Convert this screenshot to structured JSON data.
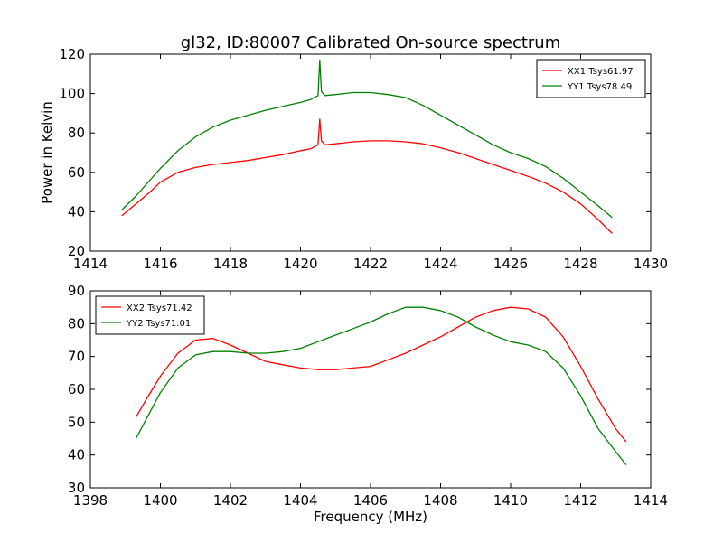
{
  "chart_data": [
    {
      "type": "line",
      "title": "gl32, ID:80007 Calibrated On-source spectrum",
      "xlabel": "",
      "ylabel": "Power in Kelvin",
      "xlim": [
        1414,
        1430
      ],
      "ylim": [
        20,
        120
      ],
      "xticks": [
        "1414",
        "1416",
        "1418",
        "1420",
        "1422",
        "1424",
        "1426",
        "1428",
        "1430"
      ],
      "yticks": [
        "20",
        "40",
        "60",
        "80",
        "100",
        "120"
      ],
      "grid": false,
      "legend_position": "top-right",
      "series": [
        {
          "name": "XX1 Tsys61.97",
          "color": "#ff0000",
          "x": [
            1414.9,
            1415.3,
            1415.7,
            1416.0,
            1416.5,
            1417.0,
            1417.5,
            1418.0,
            1418.5,
            1419.0,
            1419.5,
            1420.0,
            1420.3,
            1420.5,
            1420.55,
            1420.6,
            1420.7,
            1421.0,
            1421.5,
            1422.0,
            1422.5,
            1423.0,
            1423.5,
            1424.0,
            1424.5,
            1425.0,
            1425.5,
            1426.0,
            1426.5,
            1427.0,
            1427.5,
            1428.0,
            1428.5,
            1428.9
          ],
          "values": [
            38,
            44,
            50,
            55,
            60,
            62.5,
            64,
            65,
            66,
            67.5,
            69,
            71,
            72,
            74,
            87,
            76,
            74,
            74.5,
            75.5,
            76,
            76,
            75.5,
            74.5,
            72.5,
            70,
            67,
            64,
            61,
            58,
            54.5,
            50,
            44,
            36,
            29
          ]
        },
        {
          "name": "YY1 Tsys78.49",
          "color": "#008000",
          "x": [
            1414.9,
            1415.3,
            1415.7,
            1416.0,
            1416.5,
            1417.0,
            1417.5,
            1418.0,
            1418.5,
            1419.0,
            1419.5,
            1420.0,
            1420.3,
            1420.5,
            1420.55,
            1420.6,
            1420.7,
            1421.0,
            1421.5,
            1422.0,
            1422.5,
            1423.0,
            1423.5,
            1424.0,
            1424.5,
            1425.0,
            1425.5,
            1426.0,
            1426.5,
            1427.0,
            1427.5,
            1428.0,
            1428.5,
            1428.9
          ],
          "values": [
            41,
            48,
            56,
            62,
            71,
            78,
            83,
            86.5,
            89,
            91.5,
            93.5,
            95.5,
            97,
            99,
            117,
            101,
            99,
            99.5,
            100.5,
            100.5,
            99.5,
            98,
            94,
            89,
            84,
            79,
            74,
            70,
            67,
            63,
            57,
            50,
            43,
            37
          ]
        }
      ]
    },
    {
      "type": "line",
      "title": "",
      "xlabel": "Frequency (MHz)",
      "ylabel": "",
      "xlim": [
        1398,
        1414
      ],
      "ylim": [
        30,
        90
      ],
      "xticks": [
        "1398",
        "1400",
        "1402",
        "1404",
        "1406",
        "1408",
        "1410",
        "1412",
        "1414"
      ],
      "yticks": [
        "30",
        "40",
        "50",
        "60",
        "70",
        "80",
        "90"
      ],
      "grid": false,
      "legend_position": "top-left",
      "series": [
        {
          "name": "XX2 Tsys71.42",
          "color": "#ff0000",
          "x": [
            1399.3,
            1399.6,
            1400.0,
            1400.5,
            1401.0,
            1401.5,
            1402.0,
            1402.5,
            1403.0,
            1403.5,
            1404.0,
            1404.5,
            1405.0,
            1405.5,
            1406.0,
            1406.5,
            1407.0,
            1407.5,
            1408.0,
            1408.5,
            1409.0,
            1409.5,
            1410.0,
            1410.5,
            1411.0,
            1411.5,
            1412.0,
            1412.5,
            1413.0,
            1413.3
          ],
          "values": [
            51.5,
            57,
            64,
            71,
            75,
            75.5,
            73.5,
            71,
            68.5,
            67.5,
            66.5,
            66,
            66,
            66.5,
            67,
            69,
            71,
            73.5,
            76,
            79,
            82,
            84,
            85,
            84.5,
            82,
            76,
            67,
            57,
            48,
            44
          ]
        },
        {
          "name": "YY2 Tsys71.01",
          "color": "#008000",
          "x": [
            1399.3,
            1399.6,
            1400.0,
            1400.5,
            1401.0,
            1401.5,
            1402.0,
            1402.5,
            1403.0,
            1403.5,
            1404.0,
            1404.5,
            1405.0,
            1405.5,
            1406.0,
            1406.5,
            1407.0,
            1407.5,
            1408.0,
            1408.5,
            1409.0,
            1409.5,
            1410.0,
            1410.5,
            1411.0,
            1411.5,
            1412.0,
            1412.5,
            1413.0,
            1413.3
          ],
          "values": [
            45,
            51,
            59,
            66.5,
            70.5,
            71.5,
            71.5,
            71,
            71,
            71.5,
            72.5,
            74.5,
            76.5,
            78.5,
            80.5,
            83,
            85,
            85,
            84,
            82,
            79,
            76.5,
            74.5,
            73.5,
            71.5,
            66.5,
            58,
            48,
            41,
            37
          ]
        }
      ]
    }
  ]
}
